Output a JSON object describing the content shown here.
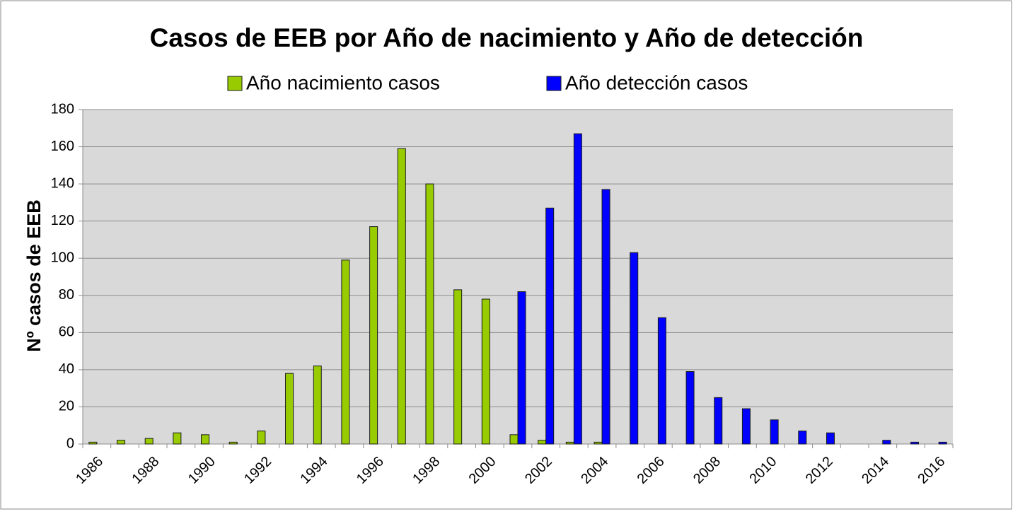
{
  "chart_data": {
    "type": "bar",
    "title": "Casos de EEB por Año de nacimiento y Año de detección",
    "y_label": "Nº casos de EEB",
    "categories": [
      "1986",
      null,
      "1988",
      null,
      "1990",
      null,
      "1992",
      null,
      "1994",
      null,
      "1996",
      null,
      "1998",
      null,
      "2000",
      null,
      "2002",
      null,
      "2004",
      null,
      "2006",
      null,
      "2008",
      null,
      "2010",
      null,
      "2012",
      null,
      "2014",
      null,
      "2016"
    ],
    "series": [
      {
        "name": "Año nacimiento casos",
        "color": "#99cc00",
        "values": [
          1,
          2,
          3,
          6,
          5,
          1,
          7,
          38,
          42,
          99,
          117,
          159,
          140,
          83,
          78,
          5,
          2,
          1,
          1,
          0,
          0,
          0,
          0,
          0,
          0,
          0,
          0,
          0,
          0,
          0,
          0
        ]
      },
      {
        "name": "Año detección casos",
        "color": "#0000ff",
        "values": [
          0,
          0,
          0,
          0,
          0,
          0,
          0,
          0,
          0,
          0,
          0,
          0,
          0,
          0,
          0,
          82,
          127,
          167,
          137,
          103,
          68,
          39,
          25,
          19,
          13,
          7,
          6,
          0,
          2,
          1,
          1
        ]
      }
    ],
    "ylim": [
      0,
      180
    ],
    "yticks": [
      0,
      20,
      40,
      60,
      80,
      100,
      120,
      140,
      160,
      180
    ],
    "grid": true,
    "legend": "top"
  }
}
